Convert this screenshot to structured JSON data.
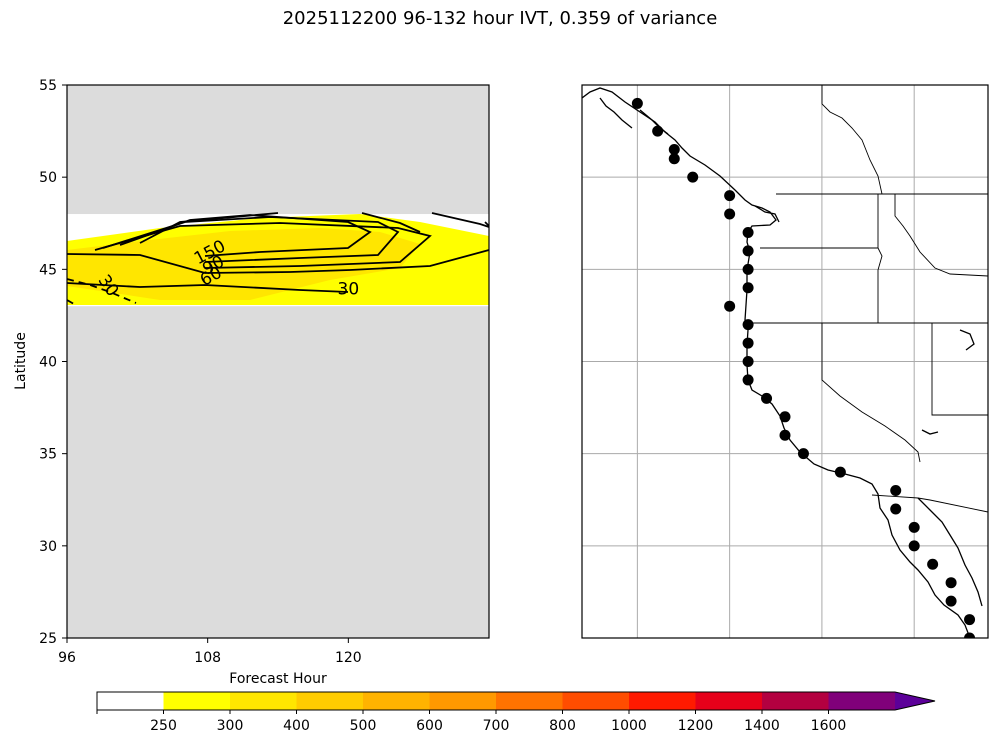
{
  "title": "2025112200 96-132 hour IVT, 0.359 of variance",
  "chart_data": [
    {
      "type": "heatmap",
      "xlabel": "Forecast Hour",
      "ylabel": "Latitude",
      "xlim": [
        96,
        132
      ],
      "ylim": [
        25,
        55
      ],
      "x_ticks": [
        "96",
        "108",
        "120"
      ],
      "y_ticks": [
        "25",
        "30",
        "35",
        "40",
        "45",
        "50",
        "55"
      ],
      "data_extent_lat": [
        43,
        48
      ],
      "missing_color": "#dcdcdc",
      "contour_labels": [
        {
          "text": "30",
          "x": 120,
          "y": 43.9
        },
        {
          "text": "30",
          "x": 99.5,
          "y": 44.1
        },
        {
          "text": "150",
          "x": 108.2,
          "y": 45.9
        },
        {
          "text": "90",
          "x": 108.5,
          "y": 45.2
        },
        {
          "text": "60",
          "x": 108.3,
          "y": 44.6
        }
      ]
    },
    {
      "type": "scatter",
      "description_points": "lon/lat",
      "xlim": [
        -134,
        -112
      ],
      "ylim": [
        25,
        55
      ],
      "gridlines_lon": [
        -131,
        -126,
        -121,
        -116
      ],
      "gridlines_lat": [
        25,
        30,
        35,
        40,
        45,
        50,
        55
      ],
      "points": [
        [
          -131,
          54
        ],
        [
          -129.9,
          52.5
        ],
        [
          -129,
          51.5
        ],
        [
          -129,
          51
        ],
        [
          -128,
          50
        ],
        [
          -126,
          49
        ],
        [
          -126,
          48
        ],
        [
          -125,
          47
        ],
        [
          -125,
          46
        ],
        [
          -125,
          45
        ],
        [
          -125,
          44
        ],
        [
          -126,
          43
        ],
        [
          -125,
          42
        ],
        [
          -125,
          41
        ],
        [
          -125,
          40
        ],
        [
          -125,
          39
        ],
        [
          -124,
          38
        ],
        [
          -123,
          37
        ],
        [
          -123,
          36
        ],
        [
          -122,
          35
        ],
        [
          -120,
          34
        ],
        [
          -117,
          33
        ],
        [
          -117,
          32
        ],
        [
          -116,
          31
        ],
        [
          -116,
          30
        ],
        [
          -115,
          29
        ],
        [
          -114,
          28
        ],
        [
          -114,
          27
        ],
        [
          -113,
          26
        ],
        [
          -113,
          25
        ]
      ]
    }
  ],
  "colorbar": {
    "ticks": [
      "250",
      "300",
      "400",
      "500",
      "600",
      "700",
      "800",
      "1000",
      "1200",
      "1400",
      "1600"
    ],
    "colors": [
      "#ffffff",
      "#ffff00",
      "#ffe600",
      "#ffcc00",
      "#ffb300",
      "#ff9900",
      "#ff7300",
      "#ff4d00",
      "#ff1a00",
      "#e6001a",
      "#b30040",
      "#80007a",
      "#5c0099",
      "#5c0099"
    ]
  }
}
